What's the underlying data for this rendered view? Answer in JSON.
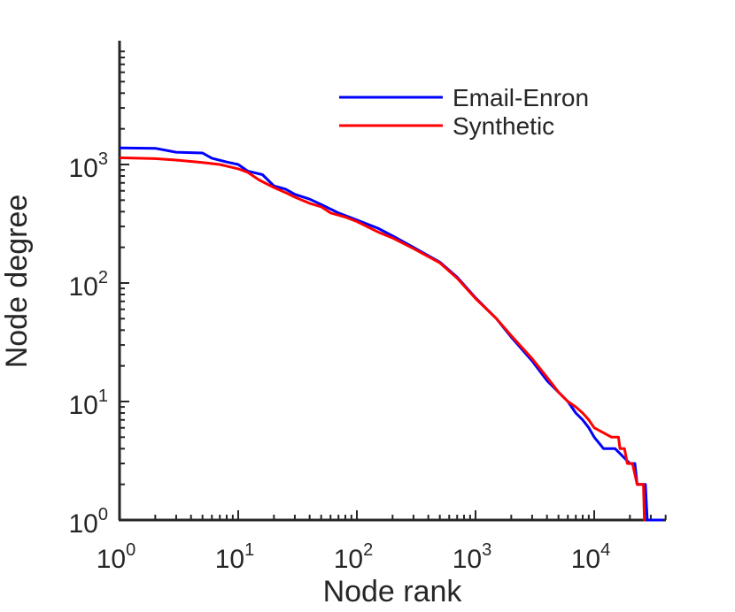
{
  "chart_data": {
    "type": "line",
    "xlabel": "Node rank",
    "ylabel": "Node degree",
    "xscale": "log",
    "yscale": "log",
    "xlim": [
      1,
      40000
    ],
    "ylim": [
      1,
      10000
    ],
    "grid": false,
    "legend_position": "top-right",
    "x_ticks": [
      {
        "base": "10",
        "exp": "0",
        "value": 1
      },
      {
        "base": "10",
        "exp": "1",
        "value": 10
      },
      {
        "base": "10",
        "exp": "2",
        "value": 100
      },
      {
        "base": "10",
        "exp": "3",
        "value": 1000
      },
      {
        "base": "10",
        "exp": "4",
        "value": 10000
      }
    ],
    "y_ticks": [
      {
        "base": "10",
        "exp": "0",
        "value": 1
      },
      {
        "base": "10",
        "exp": "1",
        "value": 10
      },
      {
        "base": "10",
        "exp": "2",
        "value": 100
      },
      {
        "base": "10",
        "exp": "3",
        "value": 1000
      }
    ],
    "series": [
      {
        "name": "Email-Enron",
        "color": "#0000ff",
        "points": [
          [
            1,
            1380
          ],
          [
            2,
            1370
          ],
          [
            3,
            1270
          ],
          [
            5,
            1250
          ],
          [
            6,
            1130
          ],
          [
            8,
            1050
          ],
          [
            10,
            1000
          ],
          [
            12,
            880
          ],
          [
            16,
            820
          ],
          [
            20,
            660
          ],
          [
            25,
            620
          ],
          [
            30,
            560
          ],
          [
            40,
            510
          ],
          [
            50,
            460
          ],
          [
            70,
            390
          ],
          [
            100,
            340
          ],
          [
            150,
            290
          ],
          [
            200,
            250
          ],
          [
            300,
            200
          ],
          [
            500,
            150
          ],
          [
            700,
            112
          ],
          [
            1000,
            75
          ],
          [
            1500,
            50
          ],
          [
            2000,
            35
          ],
          [
            3000,
            22
          ],
          [
            4000,
            15
          ],
          [
            5000,
            12
          ],
          [
            6000,
            10
          ],
          [
            7000,
            8
          ],
          [
            8000,
            7
          ],
          [
            9000,
            6
          ],
          [
            10000,
            5
          ],
          [
            12000,
            4
          ],
          [
            15000,
            4
          ],
          [
            20000,
            3
          ],
          [
            22000,
            3
          ],
          [
            23000,
            2
          ],
          [
            27000,
            2
          ],
          [
            28000,
            1
          ],
          [
            38000,
            1
          ]
        ]
      },
      {
        "name": "Synthetic",
        "color": "#ff0000",
        "points": [
          [
            1,
            1140
          ],
          [
            2,
            1120
          ],
          [
            3,
            1090
          ],
          [
            5,
            1040
          ],
          [
            7,
            1000
          ],
          [
            10,
            920
          ],
          [
            12,
            860
          ],
          [
            15,
            740
          ],
          [
            20,
            640
          ],
          [
            25,
            580
          ],
          [
            30,
            530
          ],
          [
            40,
            470
          ],
          [
            50,
            440
          ],
          [
            60,
            390
          ],
          [
            80,
            360
          ],
          [
            100,
            330
          ],
          [
            150,
            270
          ],
          [
            200,
            240
          ],
          [
            300,
            195
          ],
          [
            500,
            148
          ],
          [
            700,
            110
          ],
          [
            1000,
            74
          ],
          [
            1500,
            50
          ],
          [
            2000,
            36
          ],
          [
            3000,
            23
          ],
          [
            4000,
            16
          ],
          [
            5000,
            12
          ],
          [
            6000,
            10
          ],
          [
            7000,
            9
          ],
          [
            8000,
            8
          ],
          [
            9000,
            7
          ],
          [
            10000,
            6
          ],
          [
            14000,
            5
          ],
          [
            16000,
            5
          ],
          [
            16500,
            4
          ],
          [
            18000,
            4
          ],
          [
            19000,
            3
          ],
          [
            21000,
            3
          ],
          [
            23000,
            2
          ],
          [
            26000,
            2
          ],
          [
            26500,
            1
          ],
          [
            27000,
            1
          ]
        ]
      }
    ]
  }
}
